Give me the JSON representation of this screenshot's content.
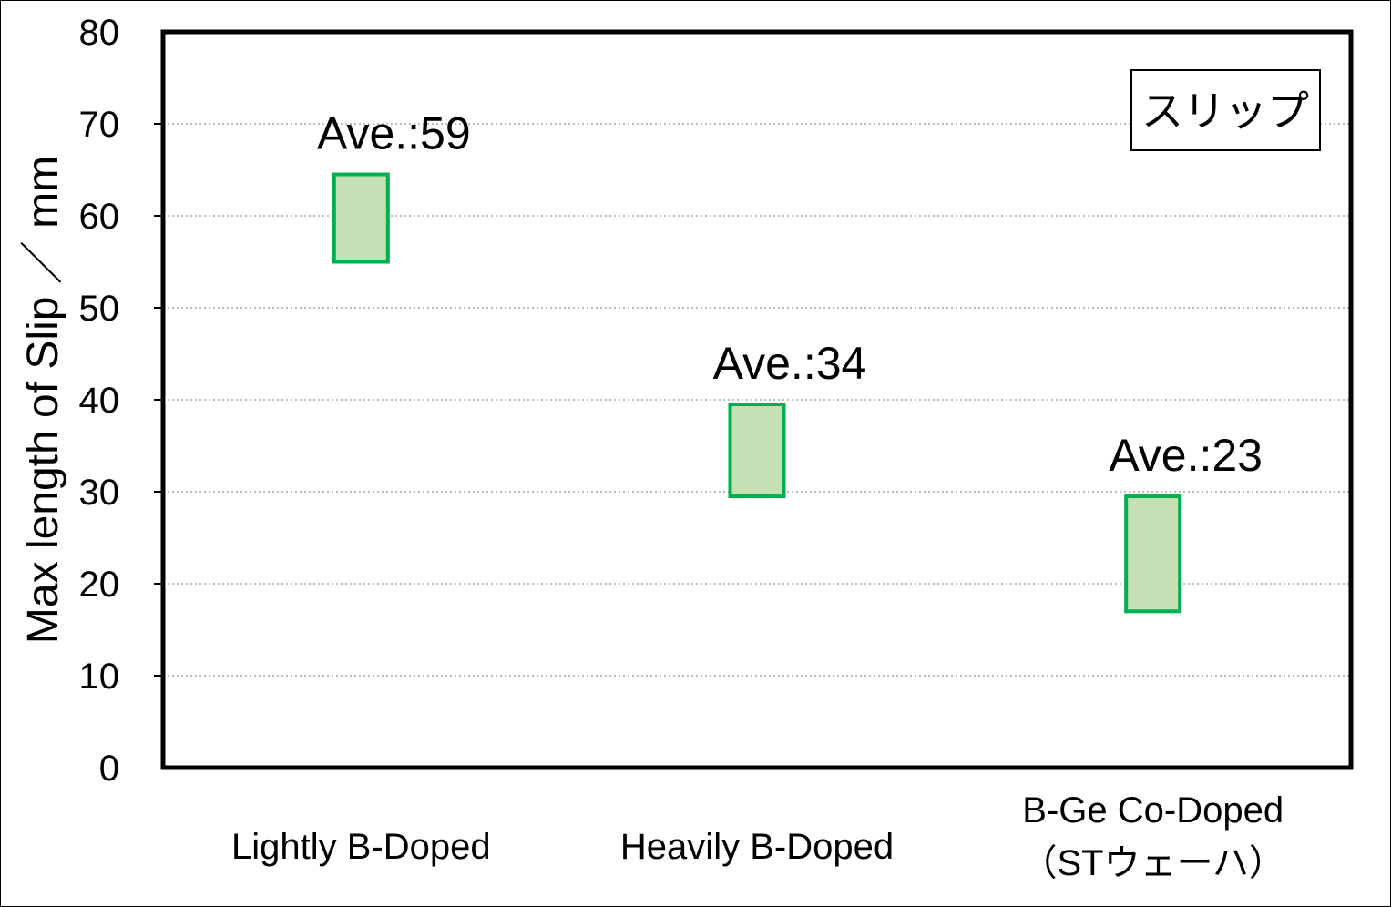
{
  "chart_data": {
    "type": "bar",
    "subtype": "floating-range",
    "ylabel": "Max length of Slip ／ mm",
    "ylim": [
      0,
      80
    ],
    "yticks": [
      0,
      10,
      20,
      30,
      40,
      50,
      60,
      70,
      80
    ],
    "grid": true,
    "legend": {
      "label": "スリップ",
      "placement": "top-right"
    },
    "colors": {
      "bar_fill": "#c5e0b4",
      "bar_stroke": "#00b050",
      "grid": "#a6a6a6",
      "axis": "#000000"
    },
    "categories": [
      {
        "lines": [
          "Lightly B-Doped"
        ],
        "low": 55,
        "high": 64.5,
        "annotation": "Ave.:59"
      },
      {
        "lines": [
          "Heavily B-Doped"
        ],
        "low": 29.5,
        "high": 39.5,
        "annotation": "Ave.:34"
      },
      {
        "lines": [
          "B-Ge Co-Doped",
          "（STウェーハ）"
        ],
        "low": 17,
        "high": 29.5,
        "annotation": "Ave.:23"
      }
    ]
  }
}
